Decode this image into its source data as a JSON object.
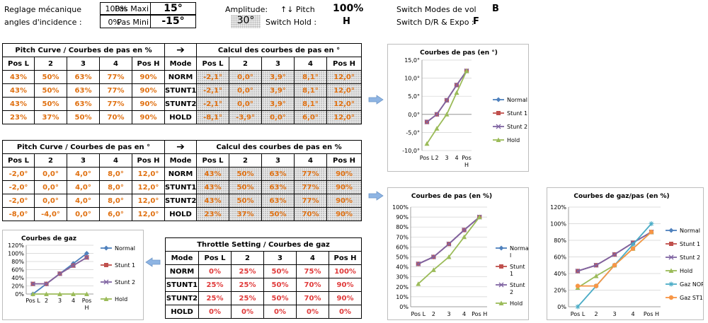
{
  "header": {
    "reglage": "Reglage mécanique",
    "angles": "angles d'incidence :",
    "maxi_pct": "100%",
    "maxi_label": "Pas Maxi",
    "maxi_val": "15°",
    "mini_pct": "0%",
    "mini_label": "Pas Mini",
    "mini_val": "-15°",
    "amplitude_label": "Amplitude:",
    "amplitude_val": "30°",
    "pitch_label": "↑↓ Pitch",
    "pitch_val": "100%",
    "switch_hold_label": "Switch Hold :",
    "switch_hold_val": "H",
    "switch_modes_label": "Switch Modes de vol",
    "switch_modes_val": "B",
    "switch_dr_label": "Switch D/R & Expo :",
    "switch_dr_val": "F"
  },
  "table1": {
    "left_title": "Pitch Curve / Courbes de pas en %",
    "arrow": "➔",
    "right_title": "Calcul des courbes de pas en °",
    "headers": [
      "Pos L",
      "2",
      "3",
      "4",
      "Pos H",
      "Mode",
      "Pos L",
      "2",
      "3",
      "4",
      "Pos H"
    ],
    "rows": [
      [
        "43%",
        "50%",
        "63%",
        "77%",
        "90%",
        "NORM",
        "-2,1°",
        "0,0°",
        "3,9°",
        "8,1°",
        "12,0°"
      ],
      [
        "43%",
        "50%",
        "63%",
        "77%",
        "90%",
        "STUNT1",
        "-2,1°",
        "0,0°",
        "3,9°",
        "8,1°",
        "12,0°"
      ],
      [
        "43%",
        "50%",
        "63%",
        "77%",
        "90%",
        "STUNT2",
        "-2,1°",
        "0,0°",
        "3,9°",
        "8,1°",
        "12,0°"
      ],
      [
        "23%",
        "37%",
        "50%",
        "70%",
        "90%",
        "HOLD",
        "-8,1°",
        "-3,9°",
        "0,0°",
        "6,0°",
        "12,0°"
      ]
    ]
  },
  "table2": {
    "left_title": "Pitch Curve / Courbes de pas en °",
    "arrow": "➔",
    "right_title": "Calcul des courbes de pas en %",
    "headers": [
      "Pos L",
      "2",
      "3",
      "4",
      "Pos H",
      "Mode",
      "Pos L",
      "2",
      "3",
      "4",
      "Pos H"
    ],
    "rows": [
      [
        "-2,0°",
        "0,0°",
        "4,0°",
        "8,0°",
        "12,0°",
        "NORM",
        "43%",
        "50%",
        "63%",
        "77%",
        "90%"
      ],
      [
        "-2,0°",
        "0,0°",
        "4,0°",
        "8,0°",
        "12,0°",
        "STUNT1",
        "43%",
        "50%",
        "63%",
        "77%",
        "90%"
      ],
      [
        "-2,0°",
        "0,0°",
        "4,0°",
        "8,0°",
        "12,0°",
        "STUNT2",
        "43%",
        "50%",
        "63%",
        "77%",
        "90%"
      ],
      [
        "-8,0°",
        "-4,0°",
        "0,0°",
        "6,0°",
        "12,0°",
        "HOLD",
        "23%",
        "37%",
        "50%",
        "70%",
        "90%"
      ]
    ]
  },
  "table3": {
    "title": "Throttle Setting / Courbes de gaz",
    "headers": [
      "Mode",
      "Pos L",
      "2",
      "3",
      "4",
      "Pos H"
    ],
    "rows": [
      [
        "NORM",
        "0%",
        "25%",
        "50%",
        "75%",
        "100%"
      ],
      [
        "STUNT1",
        "25%",
        "25%",
        "50%",
        "70%",
        "90%"
      ],
      [
        "STUNT2",
        "25%",
        "25%",
        "50%",
        "70%",
        "90%"
      ],
      [
        "HOLD",
        "0%",
        "0%",
        "0%",
        "0%",
        "0%"
      ]
    ]
  },
  "colors": {
    "normal": "#4f81bd",
    "stunt1": "#c0504d",
    "stunt2": "#8064a2",
    "hold": "#9bbb59",
    "gaz_nor": "#4bacc6",
    "gaz_st1": "#f79646",
    "arrow": "#8eb4e3"
  },
  "chart_data": [
    {
      "id": "chart_pas_deg",
      "type": "line",
      "title": "Courbes de pas (en °)",
      "categories": [
        "Pos L",
        "2",
        "3",
        "4",
        "Pos H"
      ],
      "ylim": [
        -10,
        15
      ],
      "yticks": [
        "15,0°",
        "10,0°",
        "5,0°",
        "0,0°",
        "-5,0°",
        "-10,0°"
      ],
      "yticks_v": [
        15,
        10,
        5,
        0,
        -5,
        -10
      ],
      "legend": "right",
      "series": [
        {
          "name": "Normal",
          "color_key": "normal",
          "marker": "diamond",
          "values": [
            -2.1,
            0,
            3.9,
            8.1,
            12
          ]
        },
        {
          "name": "Stunt 1",
          "color_key": "stunt1",
          "marker": "square",
          "values": [
            -2.1,
            0,
            3.9,
            8.1,
            12
          ]
        },
        {
          "name": "Stunt 2",
          "color_key": "stunt2",
          "marker": "x",
          "values": [
            -2.1,
            0,
            3.9,
            8.1,
            12
          ]
        },
        {
          "name": "Hold",
          "color_key": "hold",
          "marker": "triangle",
          "values": [
            -8.1,
            -3.9,
            0,
            6,
            12
          ]
        }
      ]
    },
    {
      "id": "chart_pas_pct",
      "type": "line",
      "title": "Courbes de pas (en %)",
      "categories": [
        "Pos L",
        "2",
        "3",
        "4",
        "Pos H"
      ],
      "ylim": [
        0,
        100
      ],
      "yticks": [
        "100%",
        "90%",
        "80%",
        "70%",
        "60%",
        "50%",
        "40%",
        "30%",
        "20%",
        "10%",
        "0%"
      ],
      "yticks_v": [
        100,
        90,
        80,
        70,
        60,
        50,
        40,
        30,
        20,
        10,
        0
      ],
      "legend": "right",
      "series": [
        {
          "name": "Norma l",
          "color_key": "normal",
          "marker": "diamond",
          "values": [
            43,
            50,
            63,
            77,
            90
          ]
        },
        {
          "name": "Stunt 1",
          "color_key": "stunt1",
          "marker": "square",
          "values": [
            43,
            50,
            63,
            77,
            90
          ]
        },
        {
          "name": "Stunt 2",
          "color_key": "stunt2",
          "marker": "x",
          "values": [
            43,
            50,
            63,
            77,
            90
          ]
        },
        {
          "name": "Hold",
          "color_key": "hold",
          "marker": "triangle",
          "values": [
            23,
            37,
            50,
            70,
            90
          ]
        }
      ]
    },
    {
      "id": "chart_gaz_pas",
      "type": "line",
      "title": "Courbes de gaz/pas (en %)",
      "categories": [
        "Pos L",
        "2",
        "3",
        "4",
        "Pos H"
      ],
      "ylim": [
        0,
        120
      ],
      "yticks": [
        "120%",
        "100%",
        "80%",
        "60%",
        "40%",
        "20%",
        "0%"
      ],
      "yticks_v": [
        120,
        100,
        80,
        60,
        40,
        20,
        0
      ],
      "legend": "right",
      "series": [
        {
          "name": "Normal",
          "color_key": "normal",
          "marker": "diamond",
          "values": [
            43,
            50,
            63,
            77,
            90
          ]
        },
        {
          "name": "Stunt 1",
          "color_key": "stunt1",
          "marker": "square",
          "values": [
            43,
            50,
            63,
            77,
            90
          ]
        },
        {
          "name": "Stunt 2",
          "color_key": "stunt2",
          "marker": "x",
          "values": [
            43,
            50,
            63,
            77,
            90
          ]
        },
        {
          "name": "Hold",
          "color_key": "hold",
          "marker": "triangle",
          "values": [
            23,
            37,
            50,
            70,
            90
          ]
        },
        {
          "name": "Gaz NOR",
          "color_key": "gaz_nor",
          "marker": "star",
          "values": [
            0,
            25,
            50,
            75,
            100
          ]
        },
        {
          "name": "Gaz ST1",
          "color_key": "gaz_st1",
          "marker": "circle",
          "values": [
            25,
            25,
            50,
            70,
            90
          ]
        }
      ]
    },
    {
      "id": "chart_gaz",
      "type": "line",
      "title": "Courbes de gaz",
      "categories": [
        "Pos L",
        "2",
        "3",
        "4",
        "Pos H"
      ],
      "ylim": [
        0,
        120
      ],
      "yticks": [
        "120%",
        "100%",
        "80%",
        "60%",
        "40%",
        "20%",
        "0%"
      ],
      "yticks_v": [
        120,
        100,
        80,
        60,
        40,
        20,
        0
      ],
      "legend": "right",
      "series": [
        {
          "name": "Normal",
          "color_key": "normal",
          "marker": "diamond",
          "values": [
            0,
            25,
            50,
            75,
            100
          ]
        },
        {
          "name": "Stunt 1",
          "color_key": "stunt1",
          "marker": "square",
          "values": [
            25,
            25,
            50,
            70,
            90
          ]
        },
        {
          "name": "Stunt 2",
          "color_key": "stunt2",
          "marker": "x",
          "values": [
            25,
            25,
            50,
            70,
            90
          ]
        },
        {
          "name": "Hold",
          "color_key": "hold",
          "marker": "triangle",
          "values": [
            0,
            0,
            0,
            0,
            0
          ]
        }
      ]
    }
  ]
}
